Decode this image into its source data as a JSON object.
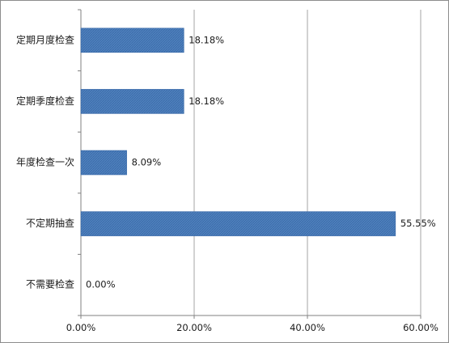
{
  "chart_data": {
    "type": "bar",
    "orientation": "horizontal",
    "categories": [
      "定期月度检查",
      "定期季度检查",
      "年度检查一次",
      "不定期抽查",
      "不需要检查"
    ],
    "values": [
      18.18,
      18.18,
      8.09,
      55.55,
      0.0
    ],
    "value_labels": [
      "18.18%",
      "18.18%",
      "8.09%",
      "55.55%",
      "0.00%"
    ],
    "xlim": [
      0,
      60
    ],
    "xticks": [
      0,
      20,
      40,
      60
    ],
    "xtick_labels": [
      "0.00%",
      "20.00%",
      "40.00%",
      "60.00%"
    ],
    "grid": "vertical",
    "legend": "none",
    "title": "",
    "xlabel": "",
    "ylabel": "",
    "colors": {
      "bar_fill": "#4f81bd",
      "bar_hatch": "#3a6aa8",
      "gridline": "#a6a6a6",
      "axis": "#808080"
    }
  }
}
